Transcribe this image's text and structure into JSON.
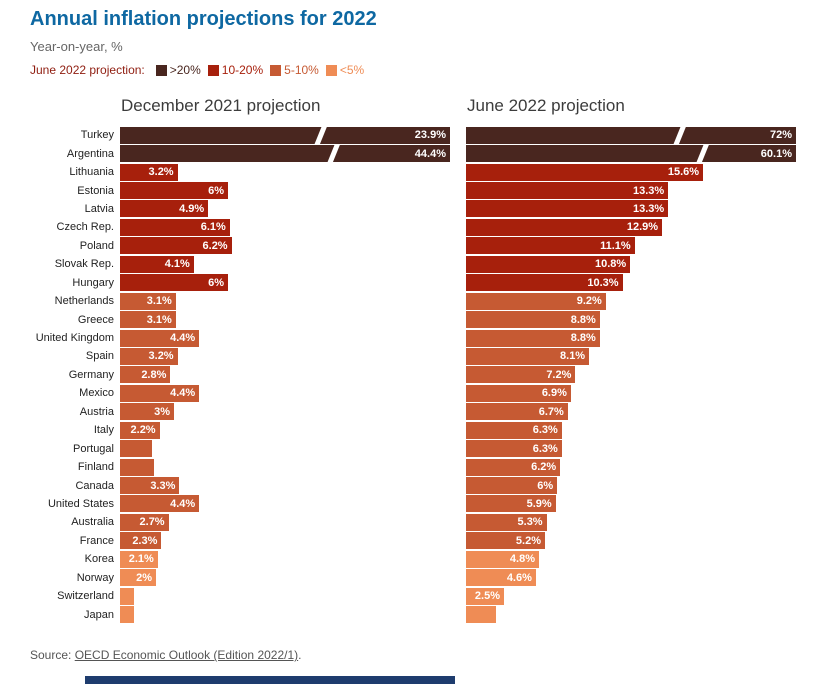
{
  "header": {
    "title": "Annual inflation projections for 2022",
    "subtitle": "Year-on-year, %"
  },
  "legend": {
    "prefix": "June 2022 projection:",
    "items": [
      {
        "label": ">20%",
        "color": "#49261f"
      },
      {
        "label": "10-20%",
        "color": "#a7200c"
      },
      {
        "label": "5-10%",
        "color": "#c65a33"
      },
      {
        "label": "<5%",
        "color": "#ef8c55"
      }
    ]
  },
  "source": {
    "prefix": "Source: ",
    "link_text": "OECD Economic Outlook (Edition 2022/1)",
    "suffix": "."
  },
  "chart_data": {
    "type": "bar",
    "orientation": "horizontal",
    "title": "Annual inflation projections for 2022",
    "unit": "%",
    "panels": [
      "December 2021 projection",
      "June 2022 projection"
    ],
    "color_legend": {
      ">20%": "#49261f",
      "10-20%": "#a7200c",
      "5-10%": "#c65a33",
      "<5%": "#ef8c55"
    },
    "axis_break_note": "Turkey and Argentina bars are truncated (white break marks)",
    "rows": [
      {
        "country": "Turkey",
        "dec": 23.9,
        "dec_label": "23.9%",
        "jun": 72,
        "jun_label": "72%",
        "cat": ">20%"
      },
      {
        "country": "Argentina",
        "dec": 44.4,
        "dec_label": "44.4%",
        "jun": 60.1,
        "jun_label": "60.1%",
        "cat": ">20%"
      },
      {
        "country": "Lithuania",
        "dec": 3.2,
        "dec_label": "3.2%",
        "jun": 15.6,
        "jun_label": "15.6%",
        "cat": "10-20%"
      },
      {
        "country": "Estonia",
        "dec": 6,
        "dec_label": "6%",
        "jun": 13.3,
        "jun_label": "13.3%",
        "cat": "10-20%"
      },
      {
        "country": "Latvia",
        "dec": 4.9,
        "dec_label": "4.9%",
        "jun": 13.3,
        "jun_label": "13.3%",
        "cat": "10-20%"
      },
      {
        "country": "Czech Rep.",
        "dec": 6.1,
        "dec_label": "6.1%",
        "jun": 12.9,
        "jun_label": "12.9%",
        "cat": "10-20%"
      },
      {
        "country": "Poland",
        "dec": 6.2,
        "dec_label": "6.2%",
        "jun": 11.1,
        "jun_label": "11.1%",
        "cat": "10-20%"
      },
      {
        "country": "Slovak Rep.",
        "dec": 4.1,
        "dec_label": "4.1%",
        "jun": 10.8,
        "jun_label": "10.8%",
        "cat": "10-20%"
      },
      {
        "country": "Hungary",
        "dec": 6,
        "dec_label": "6%",
        "jun": 10.3,
        "jun_label": "10.3%",
        "cat": "10-20%"
      },
      {
        "country": "Netherlands",
        "dec": 3.1,
        "dec_label": "3.1%",
        "jun": 9.2,
        "jun_label": "9.2%",
        "cat": "5-10%"
      },
      {
        "country": "Greece",
        "dec": 3.1,
        "dec_label": "3.1%",
        "jun": 8.8,
        "jun_label": "8.8%",
        "cat": "5-10%"
      },
      {
        "country": "United Kingdom",
        "dec": 4.4,
        "dec_label": "4.4%",
        "jun": 8.8,
        "jun_label": "8.8%",
        "cat": "5-10%"
      },
      {
        "country": "Spain",
        "dec": 3.2,
        "dec_label": "3.2%",
        "jun": 8.1,
        "jun_label": "8.1%",
        "cat": "5-10%"
      },
      {
        "country": "Germany",
        "dec": 2.8,
        "dec_label": "2.8%",
        "jun": 7.2,
        "jun_label": "7.2%",
        "cat": "5-10%"
      },
      {
        "country": "Mexico",
        "dec": 4.4,
        "dec_label": "4.4%",
        "jun": 6.9,
        "jun_label": "6.9%",
        "cat": "5-10%"
      },
      {
        "country": "Austria",
        "dec": 3,
        "dec_label": "3%",
        "jun": 6.7,
        "jun_label": "6.7%",
        "cat": "5-10%"
      },
      {
        "country": "Italy",
        "dec": 2.2,
        "dec_label": "2.2%",
        "jun": 6.3,
        "jun_label": "6.3%",
        "cat": "5-10%"
      },
      {
        "country": "Portugal",
        "dec": 1.8,
        "dec_label": "",
        "jun": 6.3,
        "jun_label": "6.3%",
        "cat": "5-10%"
      },
      {
        "country": "Finland",
        "dec": 1.9,
        "dec_label": "",
        "jun": 6.2,
        "jun_label": "6.2%",
        "cat": "5-10%"
      },
      {
        "country": "Canada",
        "dec": 3.3,
        "dec_label": "3.3%",
        "jun": 6,
        "jun_label": "6%",
        "cat": "5-10%"
      },
      {
        "country": "United States",
        "dec": 4.4,
        "dec_label": "4.4%",
        "jun": 5.9,
        "jun_label": "5.9%",
        "cat": "5-10%"
      },
      {
        "country": "Australia",
        "dec": 2.7,
        "dec_label": "2.7%",
        "jun": 5.3,
        "jun_label": "5.3%",
        "cat": "5-10%"
      },
      {
        "country": "France",
        "dec": 2.3,
        "dec_label": "2.3%",
        "jun": 5.2,
        "jun_label": "5.2%",
        "cat": "5-10%"
      },
      {
        "country": "Korea",
        "dec": 2.1,
        "dec_label": "2.1%",
        "jun": 4.8,
        "jun_label": "4.8%",
        "cat": "<5%"
      },
      {
        "country": "Norway",
        "dec": 2,
        "dec_label": "2%",
        "jun": 4.6,
        "jun_label": "4.6%",
        "cat": "<5%"
      },
      {
        "country": "Switzerland",
        "dec": 0.8,
        "dec_label": "",
        "jun": 2.5,
        "jun_label": "2.5%",
        "cat": "<5%"
      },
      {
        "country": "Japan",
        "dec": 0.8,
        "dec_label": "",
        "jun": 2,
        "jun_label": "",
        "cat": "<5%"
      }
    ]
  }
}
